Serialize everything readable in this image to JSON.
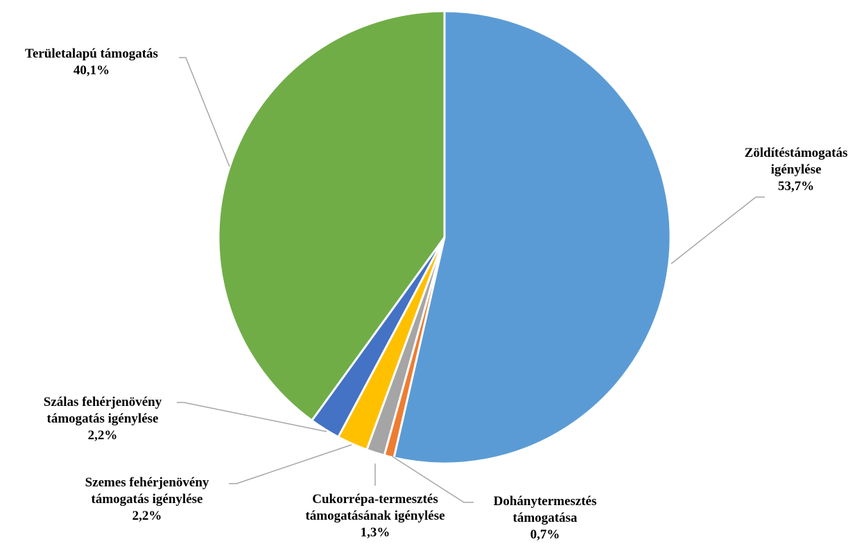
{
  "chart_data": {
    "type": "pie",
    "title": "",
    "legend": "none",
    "slices": [
      {
        "lines": [
          "Zöldítéstámogatás",
          "igénylése"
        ],
        "value": 53.7,
        "label": "53,7%",
        "color": "#5b9bd5"
      },
      {
        "lines": [
          "Dohánytermesztés",
          "támogatása"
        ],
        "value": 0.7,
        "label": "0,7%",
        "color": "#ed7d31"
      },
      {
        "lines": [
          "Cukorrépa-termesztés",
          "támogatásának igénylése"
        ],
        "value": 1.3,
        "label": "1,3%",
        "color": "#a5a5a5"
      },
      {
        "lines": [
          "Szemes fehérjenövény",
          "támogatás igénylése"
        ],
        "value": 2.2,
        "label": "2,2%",
        "color": "#ffc000"
      },
      {
        "lines": [
          "Szálas fehérjenövény",
          "támogatás igénylése"
        ],
        "value": 2.2,
        "label": "2,2%",
        "color": "#4472c4"
      },
      {
        "lines": [
          "Területalapú támogatás"
        ],
        "value": 40.1,
        "label": "40,1%",
        "color": "#70ad47"
      }
    ]
  }
}
